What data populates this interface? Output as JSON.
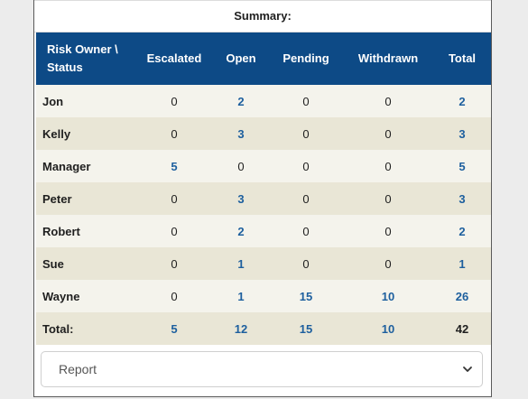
{
  "summary": {
    "title": "Summary:"
  },
  "table": {
    "headers": [
      "Risk Owner \\ Status",
      "Escalated",
      "Open",
      "Pending",
      "Withdrawn",
      "Total"
    ],
    "rows": [
      {
        "name": "Jon",
        "values": [
          "0",
          "2",
          "0",
          "0",
          "2"
        ]
      },
      {
        "name": "Kelly",
        "values": [
          "0",
          "3",
          "0",
          "0",
          "3"
        ]
      },
      {
        "name": "Manager",
        "values": [
          "5",
          "0",
          "0",
          "0",
          "5"
        ]
      },
      {
        "name": "Peter",
        "values": [
          "0",
          "3",
          "0",
          "0",
          "3"
        ]
      },
      {
        "name": "Robert",
        "values": [
          "0",
          "2",
          "0",
          "0",
          "2"
        ]
      },
      {
        "name": "Sue",
        "values": [
          "0",
          "1",
          "0",
          "0",
          "1"
        ]
      },
      {
        "name": "Wayne",
        "values": [
          "0",
          "1",
          "15",
          "10",
          "26"
        ]
      }
    ],
    "totals": {
      "label": "Total:",
      "values": [
        "5",
        "12",
        "15",
        "10",
        "42"
      ]
    }
  },
  "report_select": {
    "value": "Report",
    "icon": "chevron-down-icon"
  },
  "colors": {
    "header_bg": "#0d4a86",
    "link": "#1d5f9e",
    "row_odd": "#f4f3ec",
    "row_even": "#e9e6d6"
  }
}
